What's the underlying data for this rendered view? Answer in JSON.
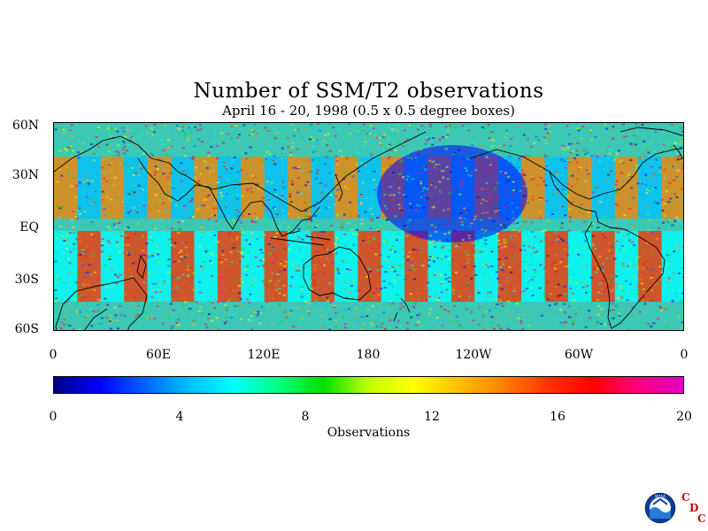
{
  "title": "Number of SSM/T2 observations",
  "subtitle": "April 16 - 20, 1998 (0.5 x 0.5 degree boxes)",
  "lat_labels": [
    "60N",
    "30N",
    "EQ",
    "30S",
    "60S"
  ],
  "lon_labels": [
    "0",
    "60E",
    "120E",
    "180",
    "120W",
    "60W",
    "0"
  ],
  "colorbar": {
    "ticks": [
      "0",
      "4",
      "8",
      "12",
      "16",
      "20"
    ],
    "label": "Observations",
    "min": 0,
    "max": 20,
    "colors": [
      "#000080",
      "#0000ff",
      "#0060ff",
      "#00c0ff",
      "#00ffff",
      "#00ff80",
      "#00e000",
      "#c0ff00",
      "#ffff00",
      "#ffc000",
      "#ff8000",
      "#ff3000",
      "#ff0000",
      "#ff0080",
      "#e000c0"
    ]
  },
  "logos": {
    "noaa_text": "NOAA",
    "cdc_letters": [
      "C",
      "D",
      "C"
    ]
  }
}
